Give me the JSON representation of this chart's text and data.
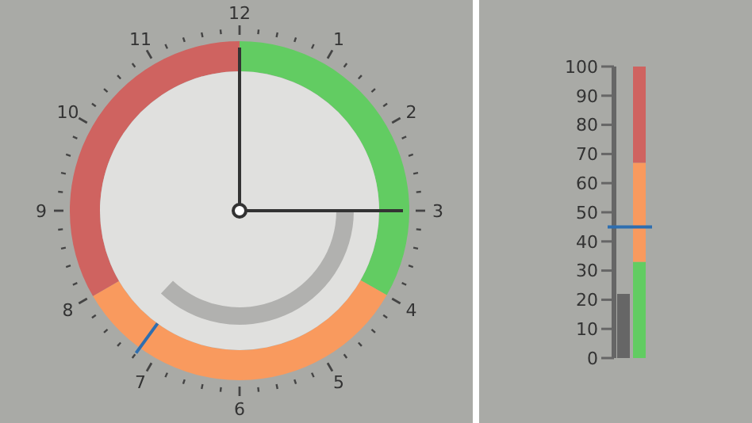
{
  "chart_data": [
    {
      "type": "donut",
      "categories": [
        null,
        null,
        null
      ],
      "values": [
        33.3,
        33.3,
        33.4
      ],
      "colors": [
        "#62cc62",
        "#f99a5e",
        "#cf6360"
      ],
      "annotations": [
        "12",
        "1",
        "2",
        "3",
        "4",
        "5",
        "6",
        "7",
        "8",
        "9",
        "10",
        "11"
      ]
    },
    {
      "type": "bar",
      "categories": [
        null,
        null
      ],
      "stacked": true,
      "ylim": [
        0,
        100
      ],
      "yticks": [
        0,
        10,
        20,
        30,
        40,
        50,
        60,
        70,
        80,
        90,
        100
      ],
      "tick_labels": "y",
      "series": [
        {
          "color": "#666666",
          "values": [
            22,
            null
          ]
        },
        {
          "color": "#62cc62",
          "values": [
            null,
            33
          ]
        },
        {
          "color": "#f99a5e",
          "values": [
            null,
            34
          ]
        },
        {
          "color": "#cf6360",
          "values": [
            null,
            33
          ]
        }
      ],
      "ref_lines": [
        {
          "axis": "y",
          "value": 45,
          "color": "#2e6eb0"
        }
      ]
    }
  ]
}
